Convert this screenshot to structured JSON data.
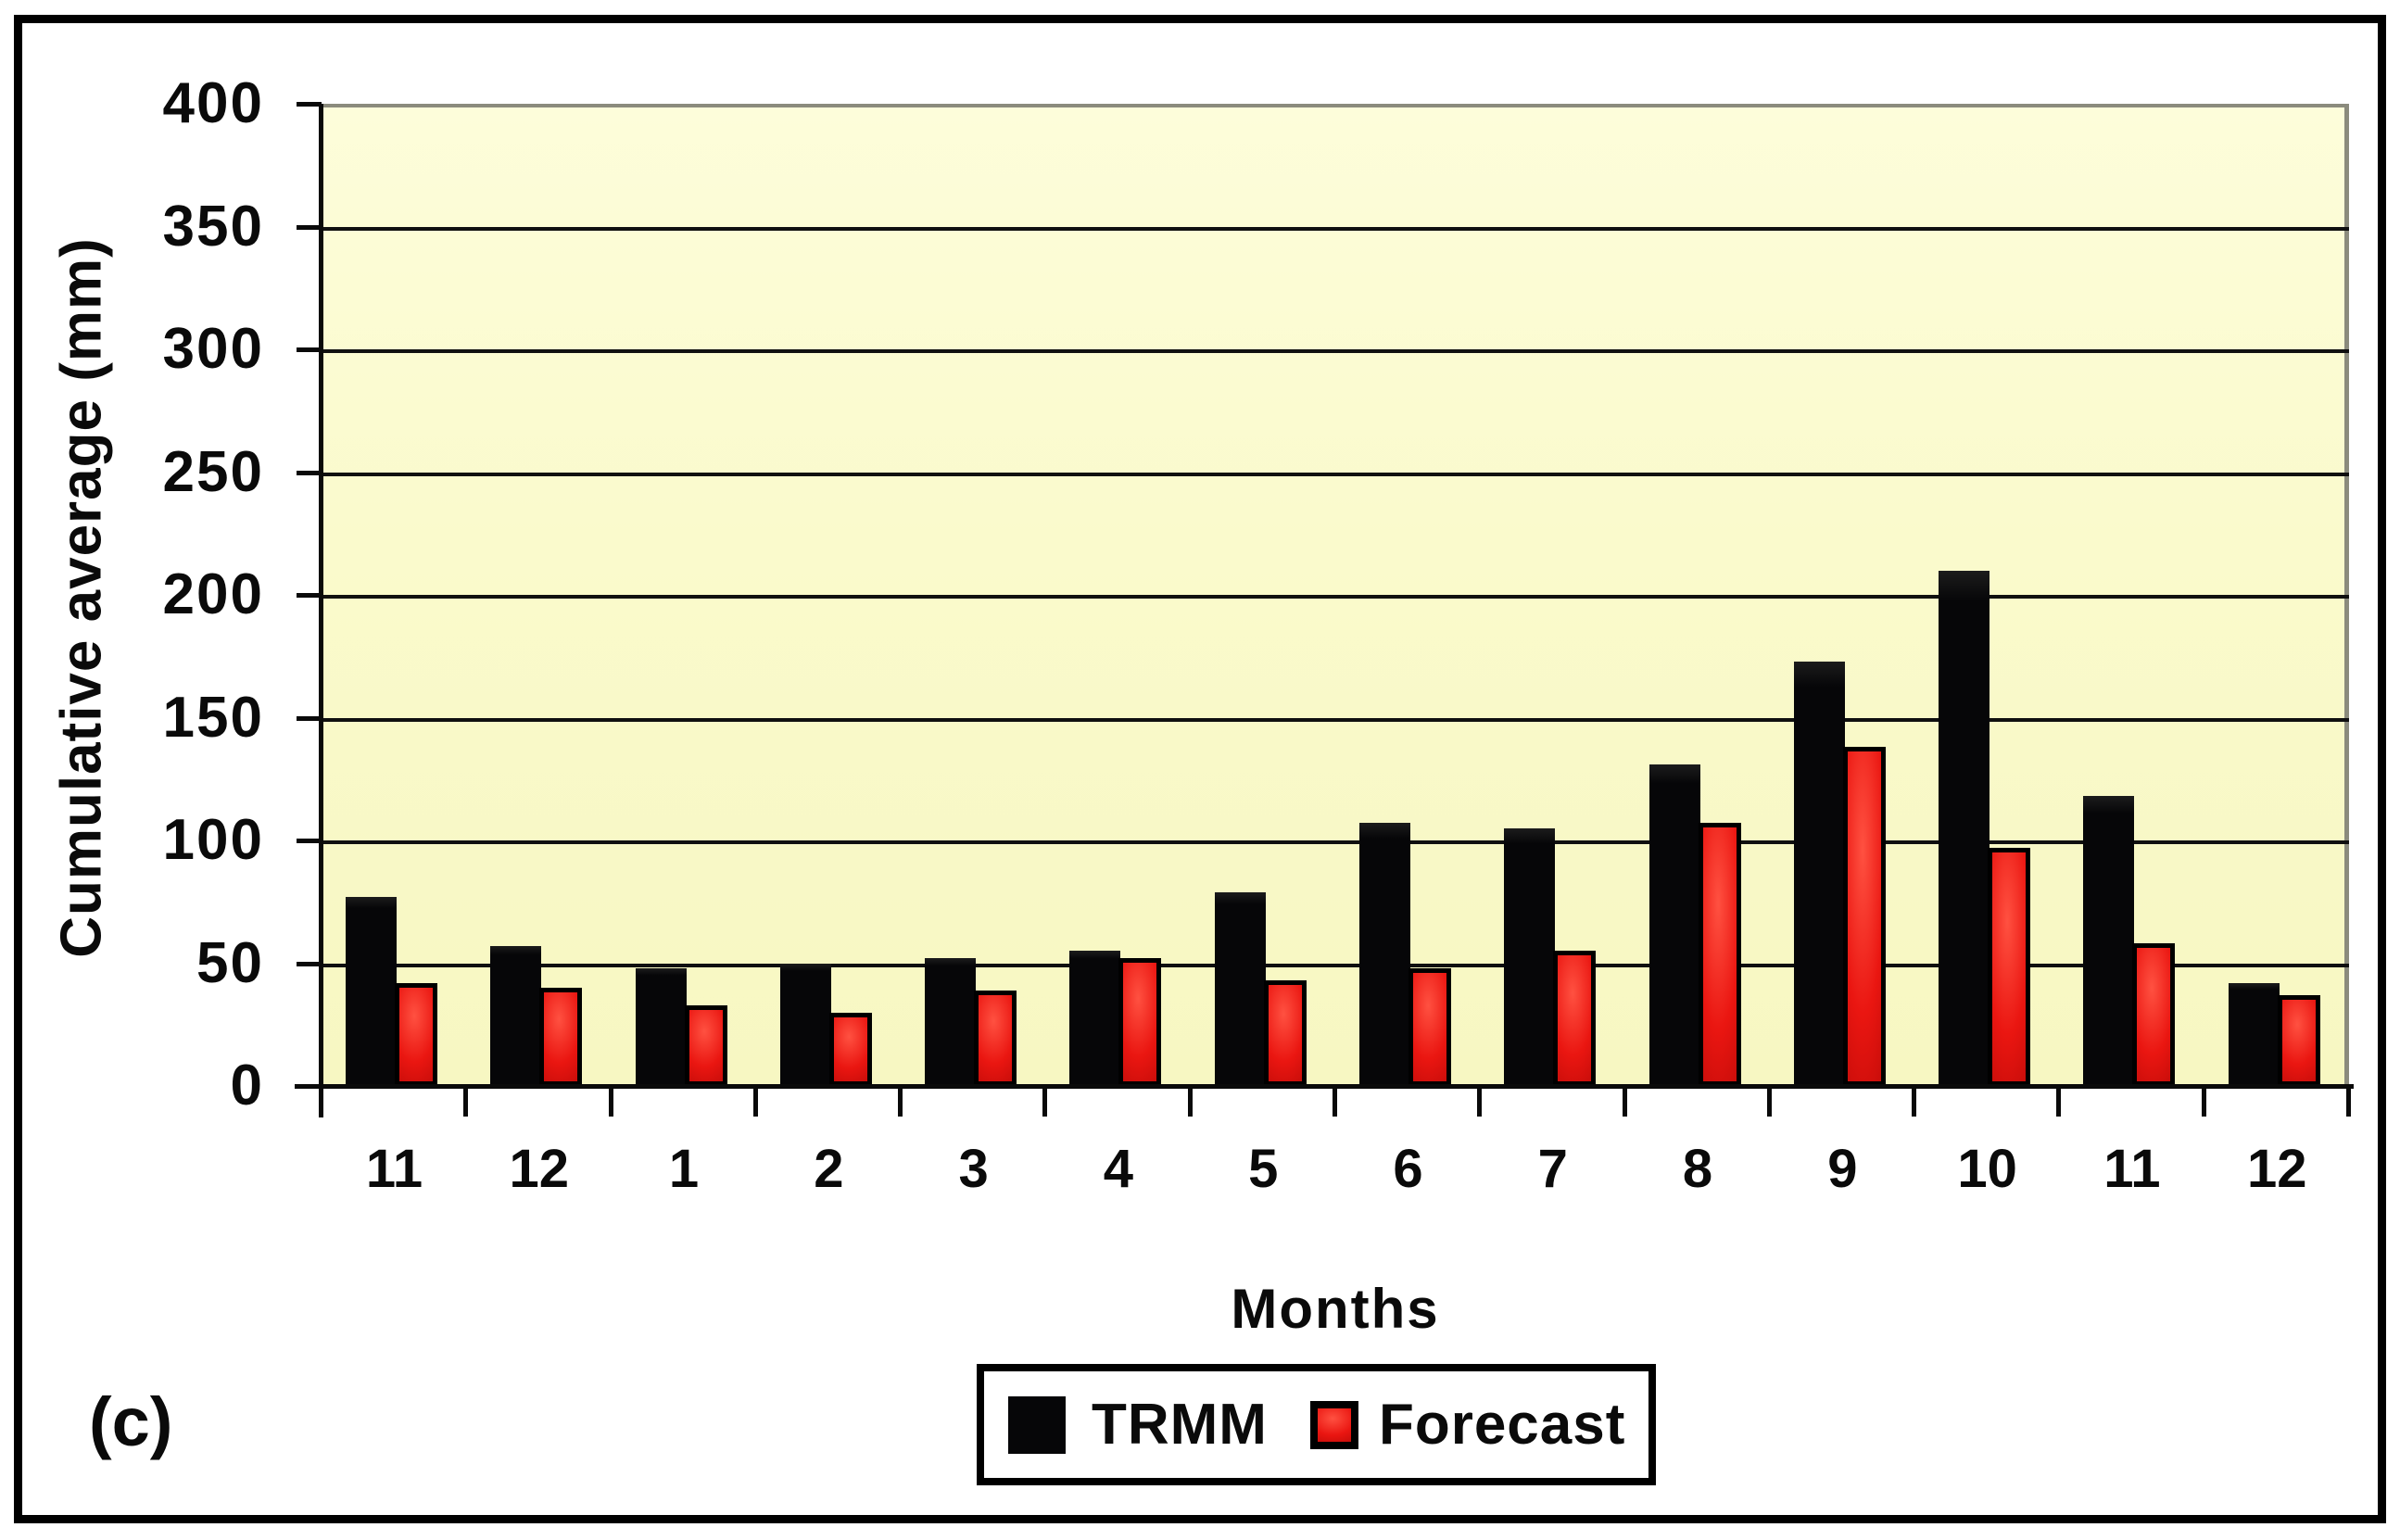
{
  "figure_label": "(c)",
  "colors": {
    "trmm_bar": "#060608",
    "forecast_bar": "#ea1611",
    "plot_background": "#fafacc",
    "gridline": "#101010",
    "plot_top_and_right_border": "#8b8b7d",
    "outer_border": "#000000"
  },
  "axes": {
    "x_label": "Months",
    "y_label": "Cumulative average (mm)"
  },
  "legend": {
    "trmm_label": "TRMM",
    "forecast_label": "Forecast"
  },
  "chart_data": {
    "type": "bar",
    "title": "",
    "xlabel": "Months",
    "ylabel": "Cumulative average (mm)",
    "ylim": [
      0,
      400
    ],
    "ytick_step": 50,
    "yticks": [
      0,
      50,
      100,
      150,
      200,
      250,
      300,
      350,
      400
    ],
    "grid": "horizontal",
    "legend_position": "bottom",
    "categories": [
      "11",
      "12",
      "1",
      "2",
      "3",
      "4",
      "5",
      "6",
      "7",
      "8",
      "9",
      "10",
      "11",
      "12"
    ],
    "series": [
      {
        "name": "TRMM",
        "color": "#060608",
        "values": [
          77,
          57,
          48,
          50,
          52,
          55,
          79,
          107,
          105,
          131,
          173,
          210,
          118,
          42
        ]
      },
      {
        "name": "Forecast",
        "color": "#ea1611",
        "values": [
          42,
          40,
          33,
          30,
          39,
          52,
          43,
          48,
          55,
          107,
          138,
          97,
          58,
          37
        ]
      }
    ]
  }
}
